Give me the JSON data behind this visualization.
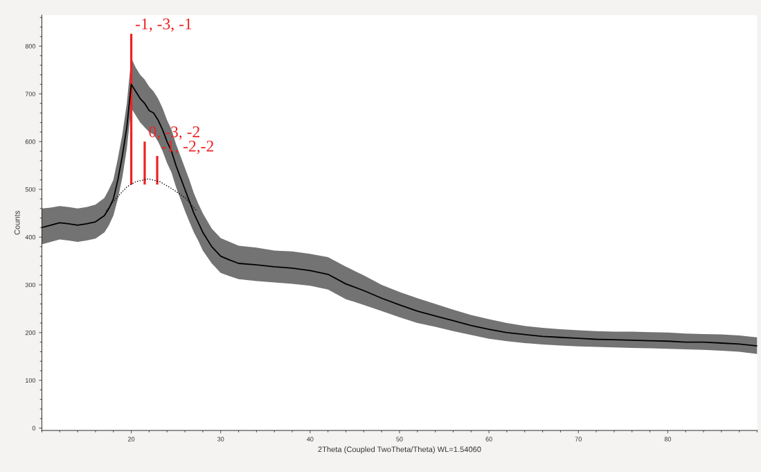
{
  "chart_data": {
    "type": "line",
    "xlabel": "2Theta (Coupled TwoTheta/Theta) WL=1.54060",
    "ylabel": "Counts",
    "xlim": [
      10,
      90
    ],
    "xticks": [
      20,
      30,
      40,
      50,
      60,
      70,
      80
    ],
    "ylim": [
      -5,
      865
    ],
    "yticks": [
      0,
      100,
      200,
      300,
      400,
      500,
      600,
      700,
      800
    ],
    "grid": false,
    "legend": false,
    "marker": "none",
    "series": [
      {
        "color": "#000000",
        "line_style": "solid",
        "x": [
          10,
          11,
          12,
          13,
          14,
          15,
          16,
          17,
          17.5,
          18,
          18.5,
          19,
          19.5,
          20,
          20.5,
          21,
          21.5,
          22,
          22.5,
          23,
          23.5,
          24,
          24.5,
          25,
          25.5,
          26,
          26.5,
          27,
          27.5,
          28,
          29,
          30,
          31,
          32,
          34,
          36,
          38,
          40,
          42,
          44,
          46,
          48,
          50,
          52,
          54,
          56,
          58,
          60,
          62,
          64,
          66,
          68,
          70,
          72,
          74,
          76,
          78,
          80,
          82,
          84,
          86,
          88,
          90
        ],
        "values": [
          420,
          425,
          430,
          428,
          425,
          428,
          432,
          445,
          460,
          480,
          520,
          570,
          630,
          720,
          705,
          690,
          680,
          665,
          660,
          645,
          625,
          600,
          580,
          550,
          525,
          500,
          475,
          450,
          430,
          410,
          380,
          360,
          352,
          345,
          342,
          338,
          335,
          330,
          322,
          302,
          288,
          272,
          258,
          245,
          235,
          225,
          215,
          207,
          200,
          196,
          192,
          190,
          188,
          186,
          185,
          184,
          183,
          182,
          180,
          180,
          178,
          176,
          172
        ],
        "lower": [
          385,
          390,
          395,
          393,
          390,
          393,
          397,
          410,
          425,
          445,
          480,
          525,
          585,
          670,
          655,
          640,
          630,
          620,
          615,
          600,
          580,
          555,
          535,
          505,
          480,
          455,
          432,
          410,
          392,
          372,
          345,
          325,
          318,
          312,
          308,
          305,
          302,
          298,
          290,
          270,
          258,
          245,
          232,
          220,
          212,
          203,
          195,
          187,
          182,
          178,
          175,
          173,
          171,
          170,
          169,
          168,
          167,
          166,
          165,
          164,
          162,
          160,
          155
        ],
        "upper": [
          460,
          462,
          465,
          463,
          460,
          463,
          468,
          482,
          500,
          520,
          565,
          615,
          680,
          775,
          755,
          740,
          730,
          715,
          705,
          690,
          670,
          645,
          625,
          595,
          570,
          545,
          520,
          492,
          470,
          450,
          418,
          398,
          390,
          382,
          378,
          372,
          370,
          365,
          358,
          338,
          320,
          300,
          285,
          272,
          260,
          248,
          237,
          228,
          220,
          214,
          210,
          207,
          205,
          203,
          202,
          202,
          201,
          200,
          198,
          197,
          196,
          194,
          190
        ]
      },
      {
        "color": "#000000",
        "line_style": "dotted",
        "x": [
          17.2,
          18.3,
          19.5,
          20.5,
          21.9,
          23.2,
          24.5,
          26.0,
          27.3
        ],
        "values": [
          455,
          481,
          505,
          516,
          522,
          516,
          502,
          483,
          455
        ]
      },
      {
        "type": "bar",
        "color": "#ee2222",
        "x": [
          20.0,
          21.5,
          22.9
        ],
        "base": [
          510,
          510,
          510
        ],
        "values": [
          316,
          90,
          60
        ]
      }
    ],
    "annotations": [
      {
        "text": "-1, -3, -1",
        "x": 20.0,
        "y": 826
      },
      {
        "text": "0, -3, -2",
        "x": 21.5,
        "y": 600
      },
      {
        "text": "-1, -2,-2",
        "x": 22.9,
        "y": 570
      }
    ]
  }
}
